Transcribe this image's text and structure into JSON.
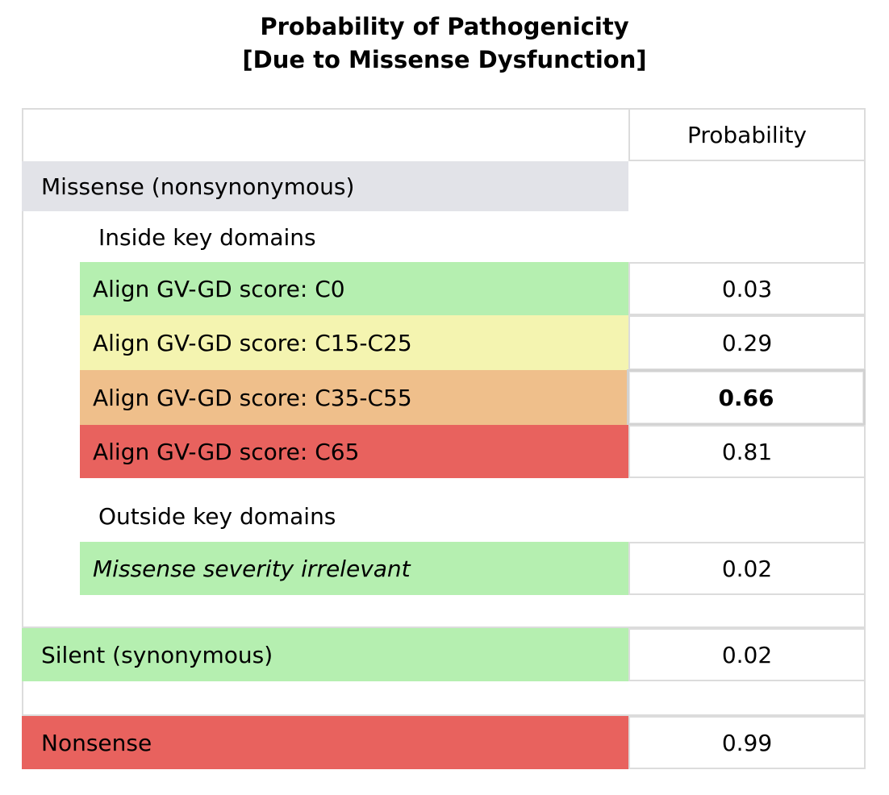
{
  "title_line1": "Probability of Pathogenicity",
  "title_line2": "[Due to Missense Dysfunction]",
  "colors": {
    "green": "#b5efb0",
    "yellow": "#f4f4b0",
    "orange": "#efbf8b",
    "red": "#e8625e",
    "gray": "#e2e3e8",
    "border": "#dcdcdc"
  },
  "table": {
    "header": "Probability",
    "missense_label": "Missense (nonsynonymous)",
    "inside_label": "Inside key domains",
    "rows": [
      {
        "label": "Align GV-GD score: C0",
        "value": "0.03",
        "color": "green"
      },
      {
        "label": "Align GV-GD score: C15-C25",
        "value": "0.29",
        "color": "yellow"
      },
      {
        "label": "Align GV-GD score: C35-C55",
        "value": "0.66",
        "color": "orange",
        "highlighted": true
      },
      {
        "label": "Align GV-GD score: C65",
        "value": "0.81",
        "color": "red"
      }
    ],
    "outside_label": "Outside key domains",
    "outside_row": {
      "label": "Missense severity irrelevant",
      "value": "0.02",
      "color": "green"
    },
    "silent_row": {
      "label": "Silent (synonymous)",
      "value": "0.02",
      "color": "green"
    },
    "nonsense_row": {
      "label": "Nonsense",
      "value": "0.99",
      "color": "red"
    }
  }
}
